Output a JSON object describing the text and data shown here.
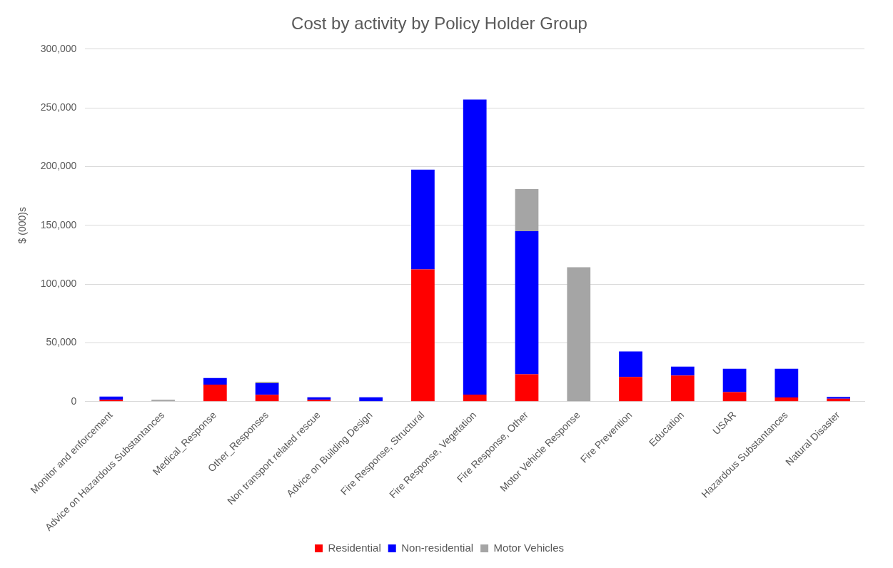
{
  "chart_data": {
    "type": "bar",
    "title": "Cost by activity by Policy Holder Group",
    "ylabel": "$ (000)s",
    "categories": [
      "Monitor and enforcement",
      "Advice on Hazardous Substantances",
      "Medical_Response",
      "Other_Responses",
      "Non transport related rescue",
      "Advice on Building Design",
      "Fire Response, Structural",
      "Fire Response, Vegetation",
      "Fire Response, Other",
      "Motor Vehicle Response",
      "Fire Prevention",
      "Education",
      "USAR",
      "Hazardous Substantances",
      "Natural Disaster"
    ],
    "series": [
      {
        "name": "Residential",
        "color": "#ff0000",
        "values": [
          1500,
          0,
          14500,
          5800,
          1600,
          0,
          112500,
          6000,
          23300,
          0,
          21000,
          22200,
          8100,
          3500,
          2500
        ]
      },
      {
        "name": "Non-residential",
        "color": "#0000ff",
        "values": [
          2700,
          0,
          5500,
          9900,
          2100,
          3700,
          84900,
          251000,
          121700,
          0,
          21700,
          7600,
          19900,
          24500,
          1500
        ]
      },
      {
        "name": "Motor Vehicles",
        "color": "#a5a5a5",
        "values": [
          0,
          1500,
          0,
          1200,
          0,
          0,
          null,
          0,
          35800,
          114400,
          0,
          0,
          null,
          null,
          0
        ]
      }
    ],
    "stacked": true,
    "ylim": [
      0,
      300000
    ],
    "yticks": [
      {
        "value": 0,
        "label": "0"
      },
      {
        "value": 50000,
        "label": "50,000"
      },
      {
        "value": 100000,
        "label": "100,000"
      },
      {
        "value": 150000,
        "label": "150,000"
      },
      {
        "value": 200000,
        "label": "200,000"
      },
      {
        "value": 250000,
        "label": "250,000"
      },
      {
        "value": 300000,
        "label": "300,000"
      }
    ],
    "grid": "y",
    "legend": "bottom"
  }
}
